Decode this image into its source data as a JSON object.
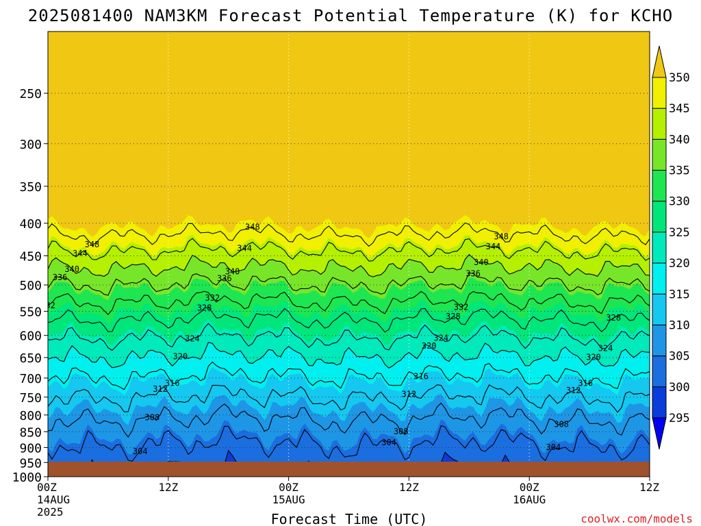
{
  "chart_data": {
    "type": "heatmap",
    "title": "2025081400 NAM3KM Forecast Potential Temperature (K) for KCHO",
    "xlabel": "Forecast Time (UTC)",
    "ylabel": "",
    "x_ticks": [
      {
        "hour": 0,
        "label": "00Z",
        "sub": "14AUG",
        "sub2": "2025"
      },
      {
        "hour": 12,
        "label": "12Z",
        "sub": "",
        "sub2": ""
      },
      {
        "hour": 24,
        "label": "00Z",
        "sub": "15AUG",
        "sub2": ""
      },
      {
        "hour": 36,
        "label": "12Z",
        "sub": "",
        "sub2": ""
      },
      {
        "hour": 48,
        "label": "00Z",
        "sub": "16AUG",
        "sub2": ""
      },
      {
        "hour": 60,
        "label": "12Z",
        "sub": "",
        "sub2": ""
      }
    ],
    "xlim": [
      0,
      60
    ],
    "y_ticks": [
      250,
      300,
      350,
      400,
      450,
      500,
      550,
      600,
      650,
      700,
      750,
      800,
      850,
      900,
      950,
      1000
    ],
    "ylim": [
      1000,
      200
    ],
    "y_scale": "log",
    "grid": true,
    "colorbar": {
      "levels": [
        295,
        300,
        305,
        310,
        315,
        320,
        325,
        330,
        335,
        340,
        345,
        350
      ],
      "labels": [
        "295",
        "300",
        "305",
        "310",
        "315",
        "320",
        "325",
        "330",
        "335",
        "340",
        "345",
        "350"
      ],
      "colors": [
        "#0000f0",
        "#0a3cdc",
        "#1a6ee0",
        "#1e96e6",
        "#14c8f0",
        "#00f0f0",
        "#00eabc",
        "#00e67a",
        "#1ee650",
        "#78e628",
        "#b4f000",
        "#f0f000",
        "#f0c814"
      ]
    },
    "ground_color": "#a0522d",
    "contours": [
      {
        "value": 300,
        "label": "300"
      },
      {
        "value": 304,
        "label": "304"
      },
      {
        "value": 308,
        "label": "308"
      },
      {
        "value": 312,
        "label": "312"
      },
      {
        "value": 316,
        "label": "316"
      },
      {
        "value": 320,
        "label": "320"
      },
      {
        "value": 324,
        "label": "324"
      },
      {
        "value": 328,
        "label": "328"
      },
      {
        "value": 332,
        "label": "332"
      },
      {
        "value": 336,
        "label": "336"
      },
      {
        "value": 340,
        "label": "340"
      },
      {
        "value": 344,
        "label": "344"
      },
      {
        "value": 348,
        "label": "348"
      }
    ],
    "annotations": [
      "coolwx.com/models"
    ]
  }
}
